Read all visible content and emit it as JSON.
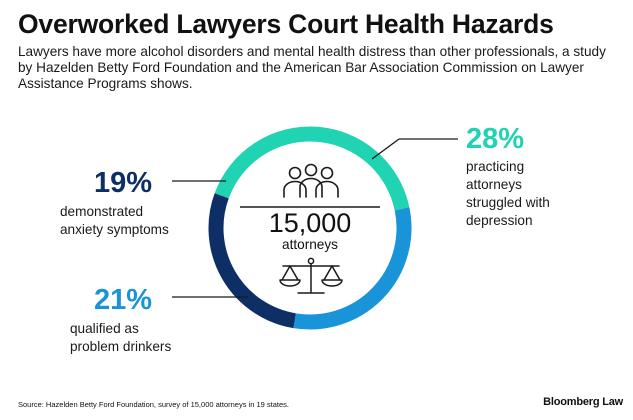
{
  "header": {
    "title": "Overworked Lawyers Court Health Hazards",
    "subtitle": "Lawyers have more alcohol disorders and mental health distress than other professionals, a study by Hazelden Betty Ford Foundation and the American Bar Association Commission on Lawyer Assistance Programs shows."
  },
  "center": {
    "count": "15,000",
    "label": "attorneys",
    "top_icon": "people-icon",
    "bottom_icon": "scales-of-justice-icon"
  },
  "chart_data": {
    "type": "pie",
    "total": "15,000 attorneys",
    "slices": [
      {
        "value": 28,
        "label": "28%",
        "description": "practicing attorneys struggled with depression",
        "color": "#1fd3b3"
      },
      {
        "value": 21,
        "label": "21%",
        "description": "qualified as problem drinkers",
        "color": "#1a94d8"
      },
      {
        "value": 19,
        "label": "19%",
        "description": "demonstrated anxiety symptoms",
        "color": "#0e2e66"
      }
    ]
  },
  "callouts": {
    "depression": {
      "pct": "28%",
      "lines": [
        "practicing",
        "attorneys",
        "struggled with",
        "depression"
      ]
    },
    "anxiety": {
      "pct": "19%",
      "lines": [
        "demonstrated",
        "anxiety symptoms"
      ]
    },
    "drinkers": {
      "pct": "21%",
      "lines": [
        "qualified as",
        "problem drinkers"
      ]
    }
  },
  "colors": {
    "depression": "#1fd3b3",
    "drinkers": "#1a94d8",
    "anxiety": "#0e2e66",
    "leader": "#1a1a1a"
  },
  "footer": {
    "source": "Source: Hazelden Betty Ford Foundation, survey of 15,000 attorneys in 19 states.",
    "brand": "Bloomberg Law"
  }
}
